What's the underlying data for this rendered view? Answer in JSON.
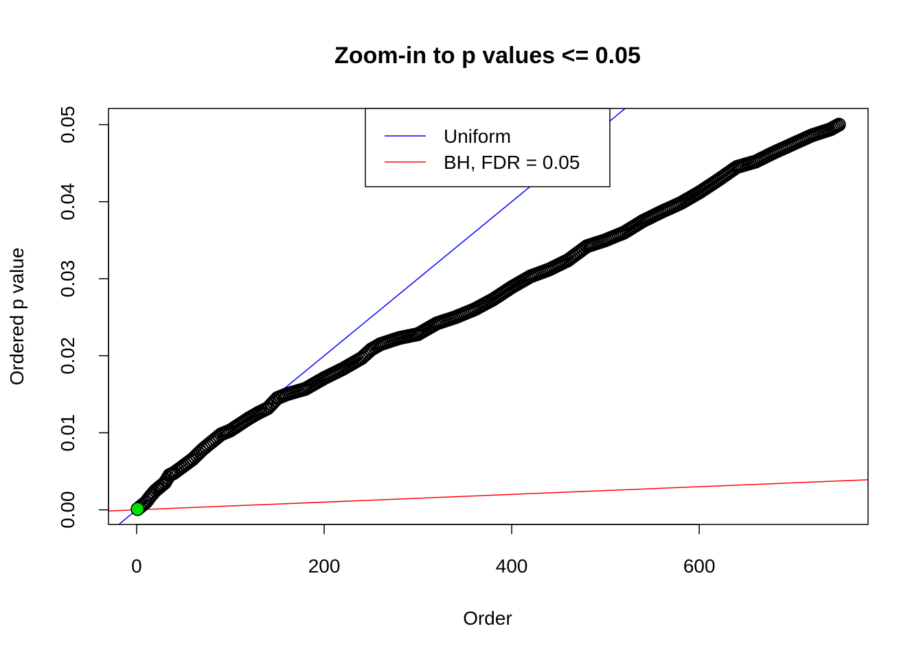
{
  "chart_data": {
    "type": "scatter",
    "title": "Zoom-in to p values <= 0.05",
    "xlabel": "Order",
    "ylabel": "Ordered p value",
    "xlim": [
      -30,
      780
    ],
    "ylim": [
      -0.0019,
      0.0521
    ],
    "x_ticks": [
      0,
      200,
      400,
      600
    ],
    "x_tick_labels": [
      "0",
      "200",
      "400",
      "600"
    ],
    "y_ticks": [
      0.0,
      0.01,
      0.02,
      0.03,
      0.04,
      0.05
    ],
    "y_tick_labels": [
      "0.00",
      "0.01",
      "0.02",
      "0.03",
      "0.04",
      "0.05"
    ],
    "grid": false,
    "legend": {
      "position": "top-center",
      "entries": [
        {
          "label": "Uniform",
          "color": "#0000ff"
        },
        {
          "label": "BH, FDR = 0.05",
          "color": "#ff0000"
        }
      ]
    },
    "lines": [
      {
        "label": "Uniform",
        "color": "#0000ff",
        "intercept": 0.0,
        "slope": 0.0001
      },
      {
        "label": "BH, FDR = 0.05",
        "color": "#ff0000",
        "intercept": 0.0,
        "slope": 5e-06
      }
    ],
    "points_series": {
      "name": "Ordered p values",
      "color": "#000000",
      "x": [
        1,
        5,
        10,
        15,
        20,
        25,
        30,
        35,
        40,
        50,
        60,
        70,
        80,
        90,
        100,
        110,
        120,
        130,
        140,
        150,
        160,
        180,
        200,
        220,
        240,
        250,
        260,
        280,
        300,
        320,
        340,
        360,
        380,
        400,
        420,
        440,
        460,
        480,
        500,
        520,
        540,
        560,
        580,
        600,
        620,
        640,
        660,
        680,
        700,
        720,
        740,
        749
      ],
      "y": [
        0.0001,
        0.0005,
        0.001,
        0.0018,
        0.0025,
        0.003,
        0.0035,
        0.0045,
        0.0048,
        0.0057,
        0.0066,
        0.0078,
        0.0088,
        0.0098,
        0.0103,
        0.0111,
        0.0119,
        0.0126,
        0.0132,
        0.0145,
        0.015,
        0.0157,
        0.0171,
        0.0183,
        0.0197,
        0.0208,
        0.0215,
        0.0223,
        0.0228,
        0.0242,
        0.025,
        0.026,
        0.0273,
        0.0289,
        0.0303,
        0.0312,
        0.0324,
        0.0342,
        0.035,
        0.036,
        0.0375,
        0.0387,
        0.0398,
        0.0412,
        0.0428,
        0.0445,
        0.0452,
        0.0464,
        0.0475,
        0.0486,
        0.0494,
        0.05
      ]
    },
    "highlight_point": {
      "x": 1,
      "y": 0.0001,
      "color": "#00e000"
    }
  }
}
